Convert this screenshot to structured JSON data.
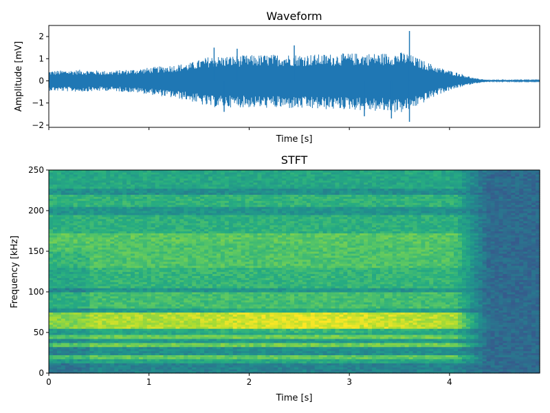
{
  "chart_data": [
    {
      "type": "line",
      "title": "Waveform",
      "xlabel": "Time [s]",
      "ylabel": "Amplitude [mV]",
      "xlim": [
        0,
        4.9
      ],
      "ylim": [
        -2.1,
        2.5
      ],
      "x_ticks": [
        0,
        1,
        2,
        3,
        4
      ],
      "x_tick_labels_visible": false,
      "y_ticks": [
        -2,
        -1,
        0,
        1,
        2
      ],
      "y_tick_labels": [
        "−2",
        "−1",
        "0",
        "1",
        "2"
      ],
      "grid": false,
      "series_color": "#1f77b4",
      "envelope": {
        "t": [
          0,
          0.3,
          0.6,
          0.9,
          1.2,
          1.4,
          1.6,
          1.9,
          2.3,
          2.7,
          3.0,
          3.3,
          3.55,
          3.7,
          3.9,
          4.1,
          4.25,
          4.4,
          4.9
        ],
        "upper": [
          0.45,
          0.5,
          0.45,
          0.55,
          0.7,
          0.8,
          1.1,
          1.15,
          1.2,
          1.2,
          1.25,
          1.25,
          1.3,
          1.0,
          0.6,
          0.35,
          0.12,
          0.04,
          0.03
        ],
        "lower": [
          -0.45,
          -0.5,
          -0.45,
          -0.55,
          -0.75,
          -0.9,
          -1.2,
          -1.2,
          -1.25,
          -1.3,
          -1.3,
          -1.4,
          -1.45,
          -1.1,
          -0.6,
          -0.3,
          -0.12,
          -0.04,
          -0.03
        ]
      },
      "spikes": [
        {
          "t": 1.65,
          "y": 1.5
        },
        {
          "t": 1.88,
          "y": 1.45
        },
        {
          "t": 2.45,
          "y": 1.6
        },
        {
          "t": 3.6,
          "y": 2.25
        },
        {
          "t": 3.42,
          "y": -1.7
        },
        {
          "t": 3.6,
          "y": -1.85
        },
        {
          "t": 3.15,
          "y": -1.6
        },
        {
          "t": 1.75,
          "y": -1.4
        }
      ]
    },
    {
      "type": "heatmap",
      "title": "STFT",
      "xlabel": "Time [s]",
      "ylabel": "Frequency [kHz]",
      "xlim": [
        0,
        4.9
      ],
      "ylim": [
        0,
        250
      ],
      "x_ticks": [
        0,
        1,
        2,
        3,
        4
      ],
      "x_tick_labels": [
        "0",
        "1",
        "2",
        "3",
        "4"
      ],
      "y_ticks": [
        0,
        50,
        100,
        150,
        200,
        250
      ],
      "y_tick_labels": [
        "0",
        "50",
        "100",
        "150",
        "200",
        "250"
      ],
      "colormap": "viridis",
      "signal_end_time": 4.05,
      "bands_khz": [
        {
          "f0": 0,
          "f1": 12,
          "level": 0.45
        },
        {
          "f0": 12,
          "f1": 17,
          "level": 0.6
        },
        {
          "f0": 17,
          "f1": 22,
          "level": 0.75
        },
        {
          "f0": 22,
          "f1": 33,
          "level": 0.5
        },
        {
          "f0": 33,
          "f1": 37,
          "level": 0.78
        },
        {
          "f0": 37,
          "f1": 42,
          "level": 0.55
        },
        {
          "f0": 42,
          "f1": 48,
          "level": 0.78
        },
        {
          "f0": 48,
          "f1": 56,
          "level": 0.6
        },
        {
          "f0": 56,
          "f1": 75,
          "level": 0.88
        },
        {
          "f0": 75,
          "f1": 80,
          "level": 0.55
        },
        {
          "f0": 80,
          "f1": 100,
          "level": 0.7
        },
        {
          "f0": 100,
          "f1": 105,
          "level": 0.52
        },
        {
          "f0": 105,
          "f1": 130,
          "level": 0.66
        },
        {
          "f0": 130,
          "f1": 160,
          "level": 0.72
        },
        {
          "f0": 160,
          "f1": 172,
          "level": 0.74
        },
        {
          "f0": 172,
          "f1": 195,
          "level": 0.64
        },
        {
          "f0": 195,
          "f1": 205,
          "level": 0.52
        },
        {
          "f0": 205,
          "f1": 220,
          "level": 0.65
        },
        {
          "f0": 220,
          "f1": 228,
          "level": 0.5
        },
        {
          "f0": 228,
          "f1": 250,
          "level": 0.6
        }
      ],
      "background_level": 0.35
    }
  ]
}
